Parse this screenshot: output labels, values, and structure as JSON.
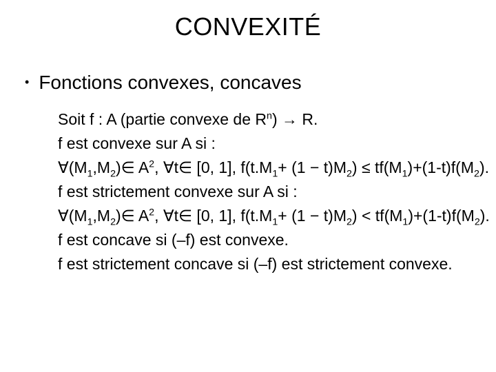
{
  "title": "CONVEXITÉ",
  "bullet": "Fonctions convexes, concaves",
  "lines": {
    "l1a": "Soit f : A (partie convexe de R",
    "l1b": ") → R.",
    "l2": "f est convexe sur A si :",
    "l3a": "∀(M",
    "l3b": ",M",
    "l3c": ")∈ A",
    "l3d": ", ∀t∈ [0, 1], f(t.M",
    "l3e": "+ (1 − t)M",
    "l3f": ") ≤ tf(M",
    "l3g": ")+(1-t)f(M",
    "l3h": ").",
    "l4": "f est strictement convexe sur A si :",
    "l5a": "∀(M",
    "l5b": ",M",
    "l5c": ")∈ A",
    "l5d": ", ∀t∈ [0, 1], f(t.M",
    "l5e": "+ (1 − t)M",
    "l5f": ") < tf(M",
    "l5g": ")+(1-t)f(M",
    "l5h": ").",
    "l6": "f est concave si (–f) est convexe.",
    "l7": "f est strictement concave si (–f) est  strictement convexe."
  },
  "sub1": "1",
  "sub2": "2",
  "supn": "n",
  "sup2": "2"
}
